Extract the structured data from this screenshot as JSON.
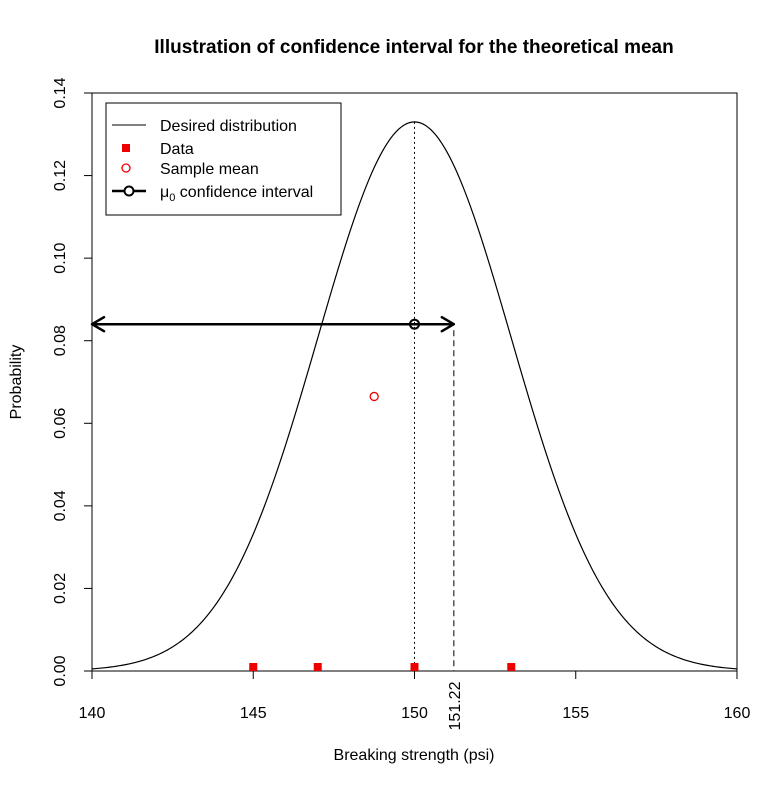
{
  "chart_data": {
    "type": "line",
    "title": "Illustration of confidence interval for the theoretical mean",
    "xlabel": "Breaking strength (psi)",
    "ylabel": "Probability",
    "xlim": [
      140,
      160
    ],
    "ylim": [
      0,
      0.14
    ],
    "x_ticks": [
      140,
      145,
      150,
      155,
      160
    ],
    "y_ticks": [
      0.0,
      0.02,
      0.04,
      0.06,
      0.08,
      0.1,
      0.12,
      0.14
    ],
    "y_tick_labels": [
      "0.00",
      "0.02",
      "0.04",
      "0.06",
      "0.08",
      "0.10",
      "0.12",
      "0.14"
    ],
    "distribution": {
      "name": "Desired distribution",
      "mean": 150,
      "sd": 3,
      "peak": 0.133
    },
    "data_points": {
      "name": "Data",
      "x": [
        145,
        147,
        150,
        153
      ],
      "y": [
        0,
        0,
        0,
        0
      ],
      "color": "#ee0000"
    },
    "sample_mean": {
      "name": "Sample mean",
      "x": 148.75,
      "y": 0.0665,
      "color": "#ee0000"
    },
    "confidence_interval": {
      "name": "confidence interval",
      "name_prefix": "μ",
      "name_subscript": "0",
      "lower": 140,
      "upper": 151.22,
      "center": 150,
      "y": 0.084,
      "upper_label": "151.22"
    },
    "legend": {
      "position": "top-left",
      "entries": [
        "Desired distribution",
        "Data",
        "Sample mean",
        "confidence interval"
      ]
    },
    "grid": false,
    "colors": {
      "data": "#ee0000",
      "line": "#000000"
    }
  }
}
